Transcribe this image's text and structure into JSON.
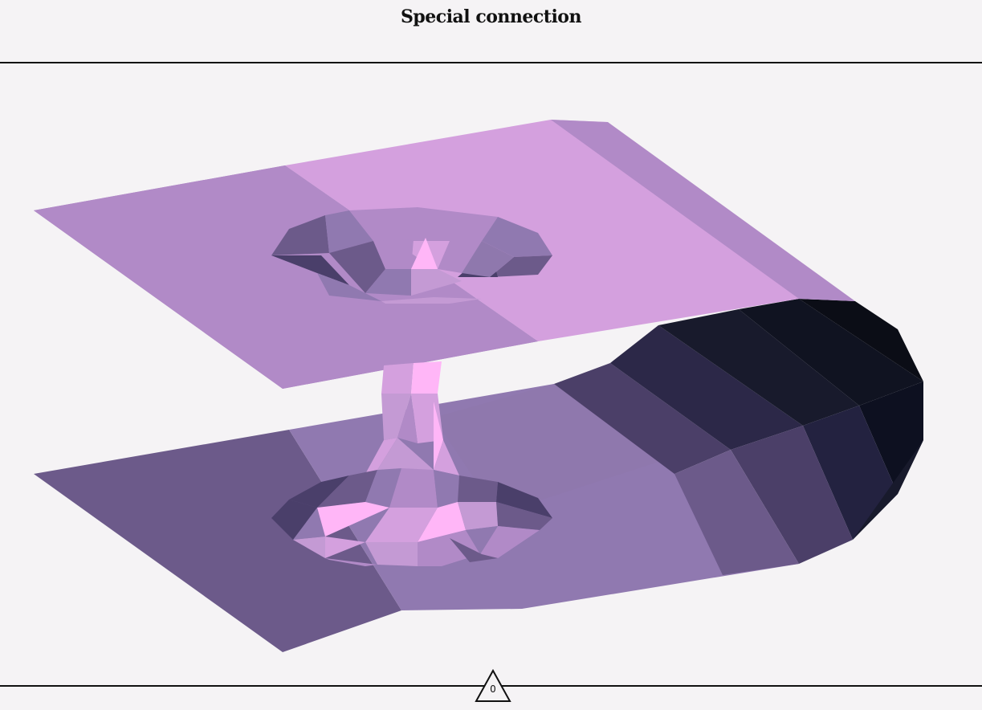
{
  "header": {
    "title": "Special connection"
  },
  "marker": {
    "label": "0"
  },
  "palette": {
    "background": "#f5f3f5",
    "light_pink": "#ffb6f7",
    "plane_light": "#d4a0de",
    "plane_mid": "#b18ac7",
    "plane_shade": "#9079b0",
    "plane_dark": "#6c5a8a",
    "shadow_darkest": "#0b0d16"
  }
}
